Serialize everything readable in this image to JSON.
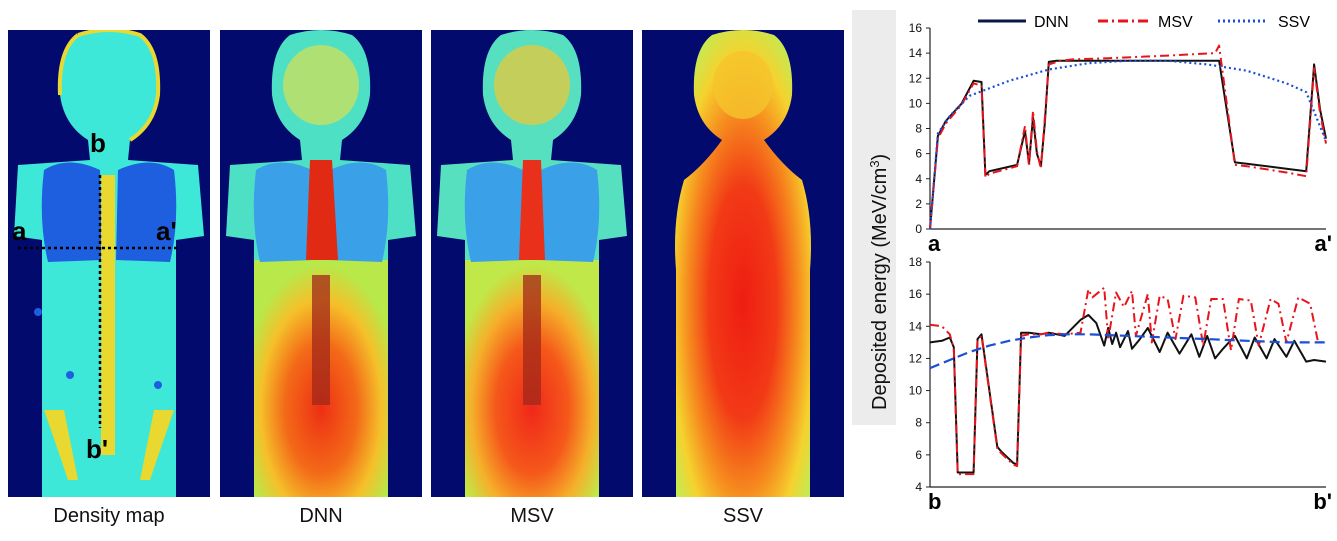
{
  "panels": [
    {
      "caption": "Density map",
      "kind": "density"
    },
    {
      "caption": "DNN",
      "kind": "dnn"
    },
    {
      "caption": "MSV",
      "kind": "msv"
    },
    {
      "caption": "SSV",
      "kind": "ssv"
    }
  ],
  "markers": {
    "a": "a",
    "a_prime": "a'",
    "b": "b",
    "b_prime": "b'"
  },
  "colors": {
    "background": "#020a6e",
    "dnn": "#111111",
    "msv": "#e8141c",
    "ssv": "#1a4fd8"
  },
  "chart_data": [
    {
      "type": "line",
      "profile": "a-a'",
      "ylabel": "Deposited energy (MeV/cm3)",
      "ylim": [
        0,
        16
      ],
      "yticks": [
        0,
        2,
        4,
        6,
        8,
        10,
        12,
        14,
        16
      ],
      "x_start_label": "a",
      "x_end_label": "a'",
      "legend": [
        "DNN",
        "MSV",
        "SSV"
      ],
      "legend_position": "top",
      "series": [
        {
          "name": "DNN",
          "style": "solid",
          "x": [
            0,
            0.02,
            0.04,
            0.08,
            0.11,
            0.13,
            0.14,
            0.15,
            0.22,
            0.24,
            0.25,
            0.26,
            0.27,
            0.28,
            0.29,
            0.3,
            0.31,
            0.32,
            0.33,
            0.36,
            0.45,
            0.6,
            0.73,
            0.77,
            0.8,
            0.9,
            0.95,
            0.97,
            0.985,
            1.0
          ],
          "y": [
            0,
            7.4,
            8.6,
            10.0,
            11.8,
            11.7,
            4.3,
            4.6,
            5.1,
            7.8,
            5.2,
            8.9,
            6.0,
            5.0,
            8.4,
            13.3,
            13.35,
            13.4,
            13.4,
            13.4,
            13.4,
            13.4,
            13.4,
            5.3,
            5.2,
            4.8,
            4.6,
            13.1,
            9.5,
            7.2
          ]
        },
        {
          "name": "MSV",
          "style": "dashdot",
          "x": [
            0,
            0.02,
            0.04,
            0.08,
            0.11,
            0.13,
            0.14,
            0.15,
            0.22,
            0.24,
            0.25,
            0.26,
            0.27,
            0.28,
            0.29,
            0.3,
            0.31,
            0.32,
            0.33,
            0.36,
            0.45,
            0.6,
            0.72,
            0.73,
            0.77,
            0.8,
            0.9,
            0.95,
            0.97,
            0.985,
            1.0
          ],
          "y": [
            0,
            7.2,
            8.4,
            9.9,
            11.6,
            11.4,
            4.1,
            4.4,
            5.0,
            8.2,
            5.0,
            9.4,
            6.2,
            4.8,
            8.8,
            13.1,
            13.2,
            13.3,
            13.4,
            13.5,
            13.6,
            13.8,
            14.0,
            14.6,
            5.1,
            5.0,
            4.5,
            4.2,
            12.8,
            9.2,
            6.8
          ]
        },
        {
          "name": "SSV",
          "style": "dotted",
          "x": [
            0,
            0.02,
            0.05,
            0.1,
            0.2,
            0.3,
            0.4,
            0.5,
            0.6,
            0.7,
            0.8,
            0.9,
            0.95,
            1.0
          ],
          "y": [
            0,
            7.6,
            9.0,
            10.6,
            11.8,
            12.7,
            13.2,
            13.4,
            13.4,
            13.1,
            12.6,
            11.6,
            10.9,
            7.0
          ]
        }
      ]
    },
    {
      "type": "line",
      "profile": "b-b'",
      "ylim": [
        4,
        18
      ],
      "yticks": [
        4,
        6,
        8,
        10,
        12,
        14,
        16,
        18
      ],
      "x_start_label": "b",
      "x_end_label": "b'",
      "series": [
        {
          "name": "DNN",
          "style": "solid",
          "x": [
            0,
            0.03,
            0.05,
            0.06,
            0.07,
            0.11,
            0.12,
            0.13,
            0.17,
            0.18,
            0.21,
            0.22,
            0.23,
            0.25,
            0.28,
            0.3,
            0.34,
            0.38,
            0.4,
            0.42,
            0.44,
            0.45,
            0.46,
            0.47,
            0.48,
            0.5,
            0.51,
            0.53,
            0.55,
            0.58,
            0.6,
            0.63,
            0.66,
            0.68,
            0.7,
            0.72,
            0.74,
            0.77,
            0.8,
            0.82,
            0.85,
            0.87,
            0.9,
            0.92,
            0.95,
            0.97,
            1.0
          ],
          "y": [
            13.0,
            13.1,
            13.3,
            12.7,
            4.9,
            4.9,
            13.2,
            13.5,
            6.5,
            6.2,
            5.5,
            5.4,
            13.6,
            13.6,
            13.5,
            13.6,
            13.4,
            14.4,
            14.7,
            14.2,
            12.8,
            13.9,
            12.9,
            13.6,
            12.7,
            13.7,
            12.6,
            13.2,
            13.9,
            12.4,
            13.6,
            12.3,
            13.5,
            12.1,
            13.4,
            12.0,
            12.6,
            13.4,
            12.0,
            13.3,
            12.0,
            13.2,
            12.1,
            13.1,
            11.8,
            11.9,
            11.8
          ]
        },
        {
          "name": "MSV",
          "style": "dashdot",
          "x": [
            0,
            0.03,
            0.05,
            0.06,
            0.07,
            0.11,
            0.12,
            0.13,
            0.17,
            0.18,
            0.21,
            0.22,
            0.23,
            0.25,
            0.28,
            0.3,
            0.34,
            0.38,
            0.4,
            0.41,
            0.44,
            0.45,
            0.47,
            0.49,
            0.51,
            0.52,
            0.55,
            0.56,
            0.58,
            0.6,
            0.62,
            0.64,
            0.67,
            0.69,
            0.71,
            0.74,
            0.76,
            0.78,
            0.81,
            0.83,
            0.86,
            0.88,
            0.9,
            0.93,
            0.96,
            0.98,
            1.0
          ],
          "y": [
            14.1,
            14.0,
            13.5,
            12.6,
            4.8,
            4.8,
            13.1,
            13.4,
            6.4,
            6.1,
            5.4,
            5.3,
            13.4,
            13.5,
            13.5,
            13.6,
            13.5,
            13.6,
            16.3,
            15.8,
            16.4,
            13.2,
            16.1,
            15.2,
            16.2,
            13.4,
            16.0,
            13.0,
            15.9,
            15.7,
            13.2,
            15.9,
            15.8,
            12.8,
            15.7,
            15.7,
            12.5,
            15.7,
            15.6,
            12.8,
            15.7,
            15.4,
            13.0,
            15.8,
            15.4,
            13.0,
            13.0
          ]
        },
        {
          "name": "SSV",
          "style": "dashed",
          "x": [
            0,
            0.05,
            0.1,
            0.15,
            0.2,
            0.25,
            0.3,
            0.35,
            0.4,
            0.5,
            0.6,
            0.7,
            0.8,
            0.9,
            1.0
          ],
          "y": [
            11.4,
            11.9,
            12.4,
            12.8,
            13.1,
            13.3,
            13.45,
            13.5,
            13.5,
            13.4,
            13.3,
            13.2,
            13.1,
            13.0,
            13.0
          ]
        }
      ]
    }
  ]
}
